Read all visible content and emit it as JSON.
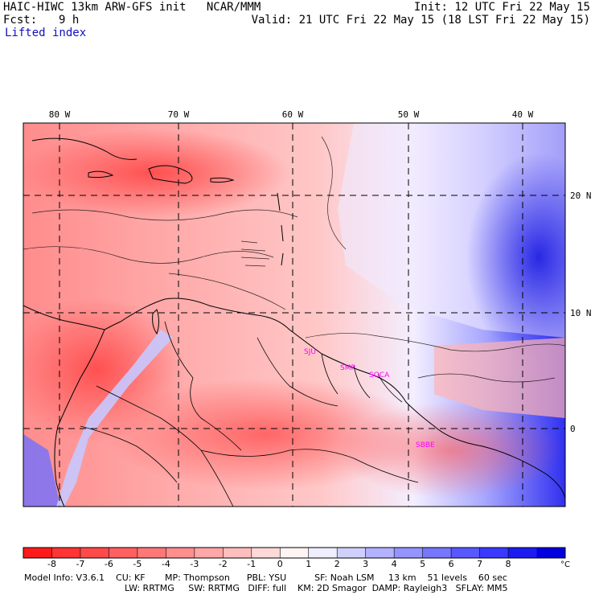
{
  "header": {
    "title": "HAIC-HIWC 13km ARW-GFS init   NCAR/MMM",
    "init": "Init: 12 UTC Fri 22 May 15",
    "fcst_label": "Fcst:",
    "fcst_value": "9 h",
    "valid": "Valid: 21 UTC Fri 22 May 15 (18 LST Fri 22 May 15)",
    "field": "Lifted index"
  },
  "map": {
    "lon_labels": [
      "80 W",
      "70 W",
      "60 W",
      "50 W",
      "40 W"
    ],
    "lat_labels": [
      "20 N",
      "10 N",
      "0"
    ],
    "stations": [
      "SJU",
      "SMP",
      "SOCA",
      "SBBE"
    ],
    "station_color": "#ff00ff"
  },
  "colorbar": {
    "ticks": [
      "-8",
      "-7",
      "-6",
      "-5",
      "-4",
      "-3",
      "-2",
      "-1",
      "0",
      "1",
      "2",
      "3",
      "4",
      "5",
      "6",
      "7",
      "8"
    ],
    "unit": "°C",
    "colors": [
      "#ff1a1a",
      "#ff3434",
      "#ff4a4a",
      "#ff6060",
      "#ff7878",
      "#ff8e8e",
      "#ffa6a6",
      "#ffbebe",
      "#ffd8d8",
      "#fff4f4",
      "#eeeeff",
      "#d0d0ff",
      "#b2b2ff",
      "#9494ff",
      "#7676ff",
      "#5858ff",
      "#3a3aff",
      "#1c1cf0",
      "#0000e0"
    ]
  },
  "footer": {
    "line1": "Model Info: V3.6.1    CU: KF       MP: Thompson      PBL: YSU          SF: Noah LSM     13 km    51 levels    60 sec",
    "line2": "LW: RRTMG     SW: RRTMG   DIFF: full    KM: 2D Smagor  DAMP: Rayleigh3   SFLAY: MM5"
  }
}
